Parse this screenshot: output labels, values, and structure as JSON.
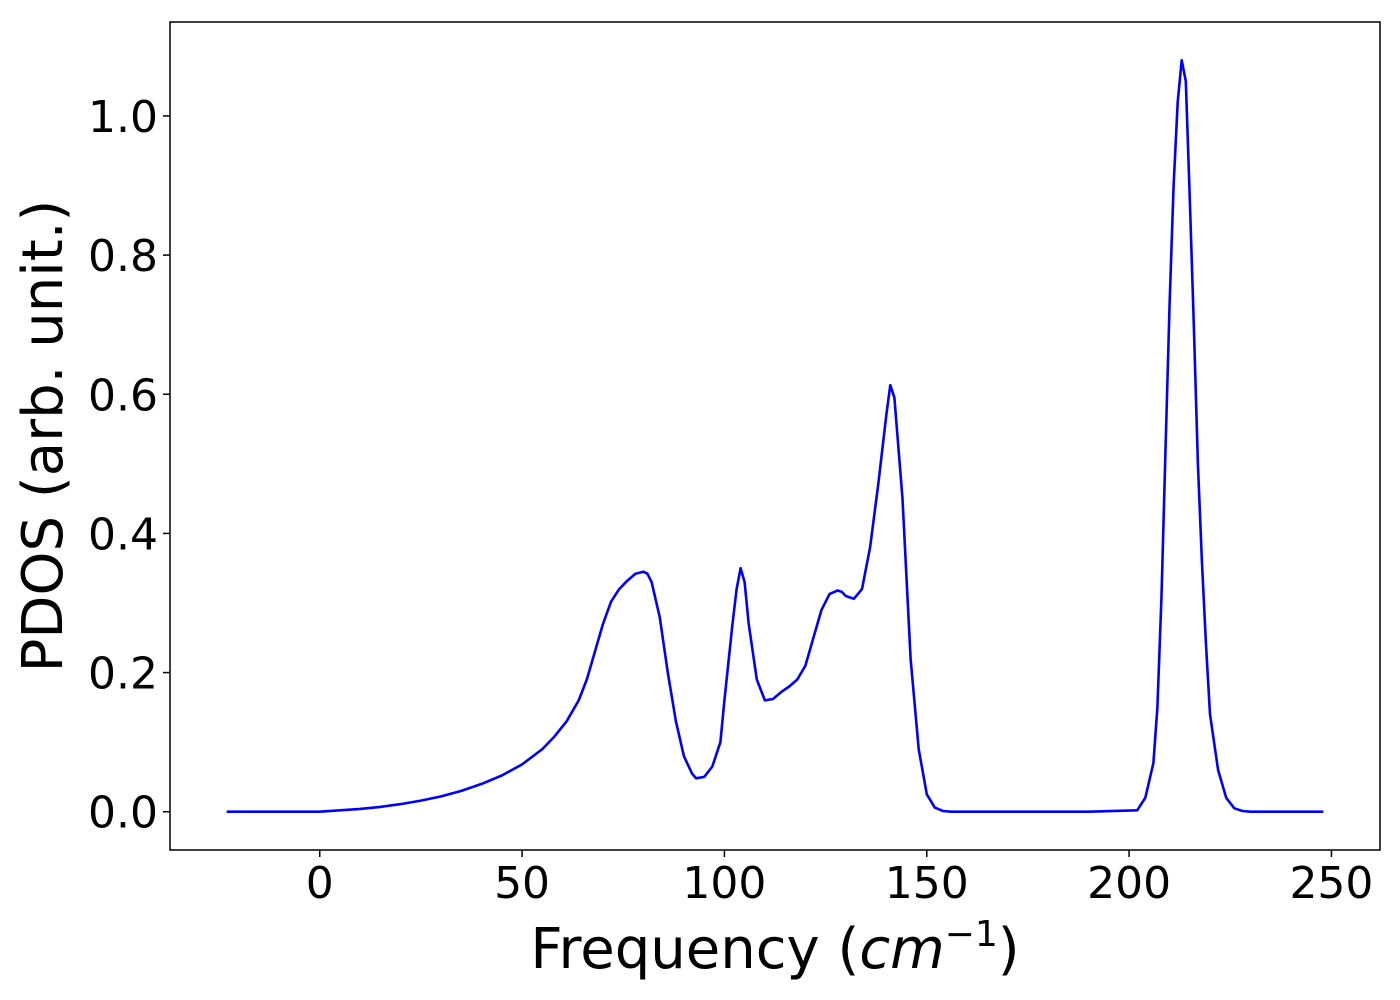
{
  "chart_data": {
    "type": "line",
    "title": "",
    "xlabel": "Frequency (",
    "xlabel_unit": "cm",
    "xlabel_unit_exp": "−1",
    "xlabel_close": ")",
    "ylabel": "PDOS (arb. unit.)",
    "xlim": [
      -37,
      262
    ],
    "ylim": [
      -0.055,
      1.135
    ],
    "xticks": [
      0,
      50,
      100,
      150,
      200,
      250
    ],
    "yticks": [
      0.0,
      0.2,
      0.4,
      0.6,
      0.8,
      1.0
    ],
    "xtick_labels": [
      "0",
      "50",
      "100",
      "150",
      "200",
      "250"
    ],
    "ytick_labels": [
      "0.0",
      "0.2",
      "0.4",
      "0.6",
      "0.8",
      "1.0"
    ],
    "grid": false,
    "series": [
      {
        "color": "#0000ff",
        "x": [
          -23,
          -10,
          0,
          5,
          10,
          15,
          20,
          25,
          30,
          35,
          40,
          45,
          50,
          55,
          58,
          61,
          64,
          66,
          68,
          70,
          72,
          74,
          76,
          78,
          80,
          81,
          82,
          84,
          86,
          88,
          90,
          92,
          93,
          95,
          97,
          99,
          100,
          102,
          103,
          104,
          105,
          106,
          108,
          110,
          112,
          114,
          116,
          118,
          120,
          122,
          124,
          126,
          128,
          129,
          130,
          132,
          134,
          136,
          138,
          140,
          141,
          142,
          144,
          146,
          148,
          150,
          152,
          154,
          156,
          170,
          190,
          202,
          204,
          206,
          207,
          208,
          209,
          210,
          211,
          212,
          213,
          214,
          215,
          216,
          217,
          218,
          219,
          220,
          222,
          224,
          226,
          228,
          230,
          232,
          248
        ],
        "y": [
          0.0,
          0.0,
          0.0,
          0.002,
          0.004,
          0.007,
          0.011,
          0.016,
          0.022,
          0.03,
          0.04,
          0.052,
          0.068,
          0.09,
          0.108,
          0.13,
          0.16,
          0.19,
          0.23,
          0.27,
          0.302,
          0.32,
          0.332,
          0.342,
          0.345,
          0.342,
          0.33,
          0.28,
          0.2,
          0.13,
          0.08,
          0.055,
          0.048,
          0.05,
          0.065,
          0.1,
          0.16,
          0.27,
          0.32,
          0.35,
          0.33,
          0.27,
          0.19,
          0.16,
          0.162,
          0.172,
          0.18,
          0.19,
          0.21,
          0.25,
          0.29,
          0.313,
          0.318,
          0.316,
          0.31,
          0.306,
          0.32,
          0.38,
          0.47,
          0.57,
          0.613,
          0.595,
          0.45,
          0.22,
          0.09,
          0.025,
          0.006,
          0.001,
          0.0,
          0.0,
          0.0,
          0.002,
          0.02,
          0.07,
          0.15,
          0.31,
          0.52,
          0.73,
          0.9,
          1.02,
          1.08,
          1.05,
          0.88,
          0.7,
          0.5,
          0.36,
          0.24,
          0.14,
          0.06,
          0.02,
          0.005,
          0.001,
          0.0,
          0.0,
          0.0
        ]
      }
    ]
  }
}
